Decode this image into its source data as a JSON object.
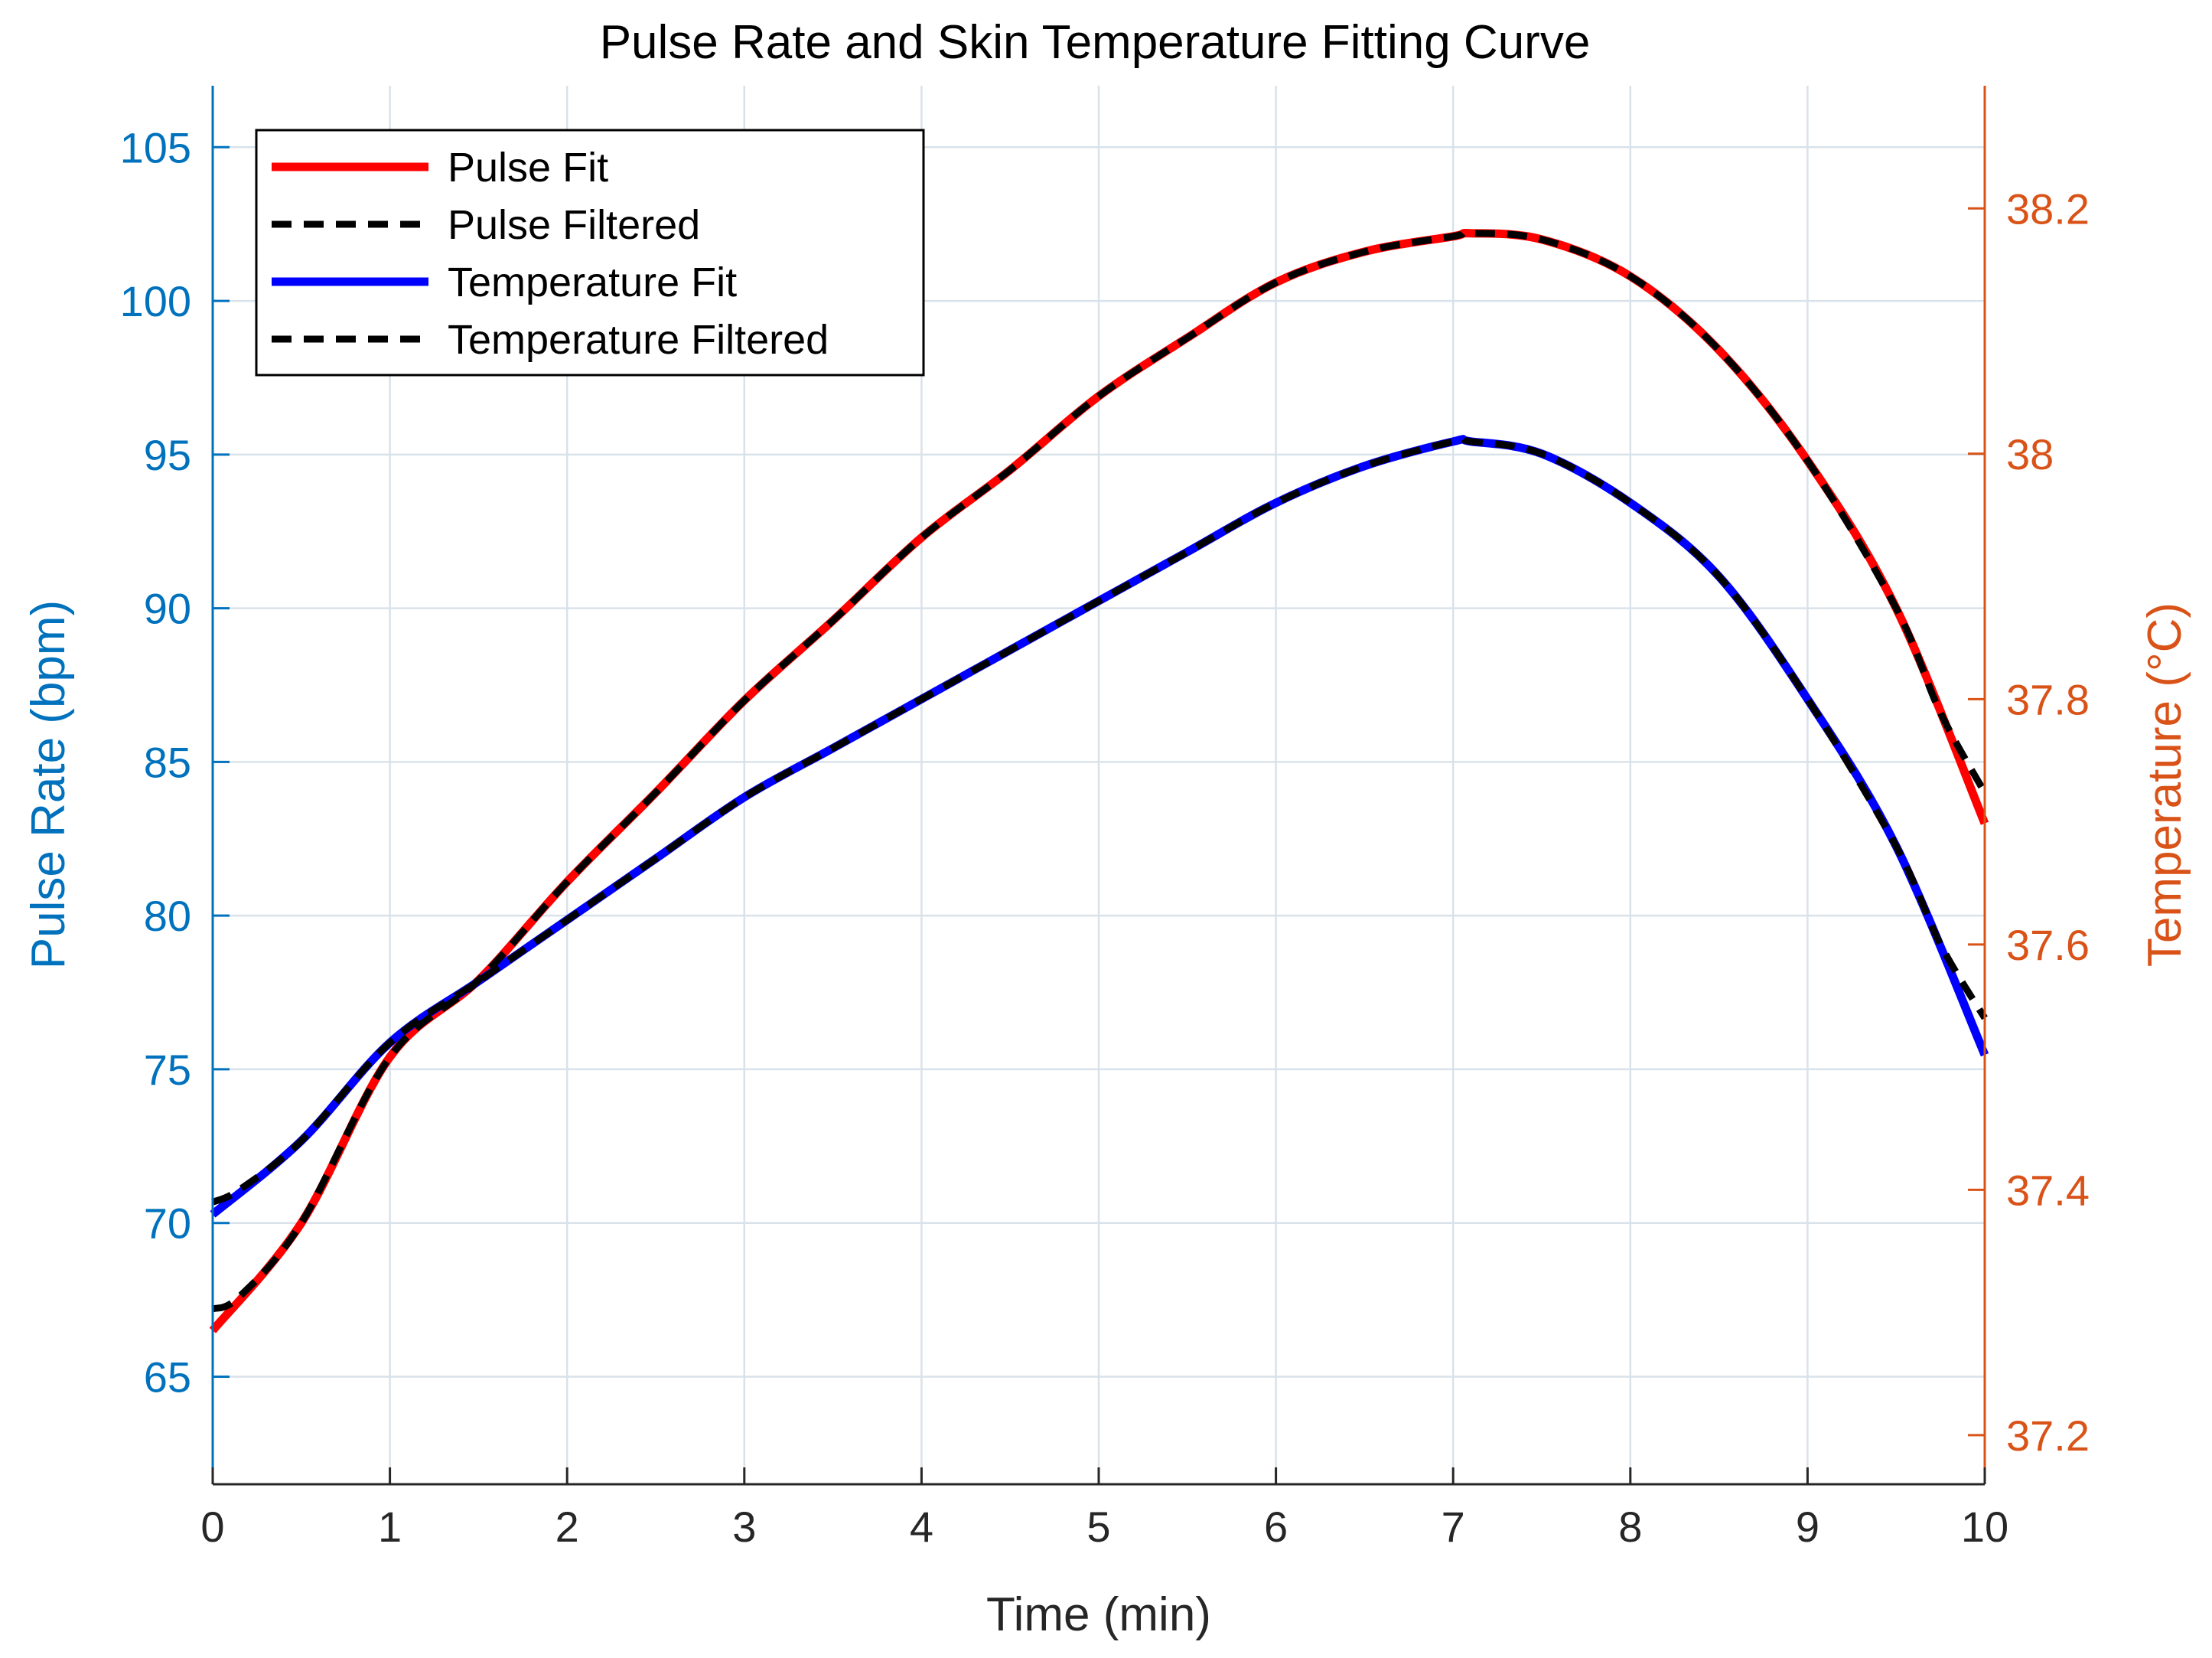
{
  "chart_data": {
    "type": "line",
    "title": "Pulse Rate and Skin Temperature Fitting Curve",
    "xlabel": "Time (min)",
    "ylabel_left": "Pulse Rate (bpm)",
    "ylabel_right": "Temperature (°C)",
    "xlim": [
      0,
      10
    ],
    "ylim_left": [
      61.5,
      107
    ],
    "ylim_right": [
      37.16,
      38.3
    ],
    "x_ticks": [
      "0",
      "1",
      "2",
      "3",
      "4",
      "5",
      "6",
      "7",
      "8",
      "9",
      "10"
    ],
    "y_left_ticks": [
      "65",
      "70",
      "75",
      "80",
      "85",
      "90",
      "95",
      "100",
      "105"
    ],
    "y_right_ticks": [
      "37.2",
      "37.4",
      "37.6",
      "37.8",
      "38",
      "38.2"
    ],
    "grid": true,
    "legend_position": "top-left",
    "colors": {
      "left_axis": "#0072bd",
      "right_axis": "#d95319",
      "pulse_fit": "#ff0000",
      "temperature_fit": "#0000ff",
      "filtered": "#000000"
    },
    "series": [
      {
        "name": "Pulse Fit",
        "axis": "left",
        "style": "solid",
        "color": "#ff0000",
        "x": [
          0,
          0.5,
          1,
          1.5,
          2,
          2.5,
          3,
          3.5,
          4,
          4.5,
          5,
          5.5,
          6,
          6.5,
          7,
          7.1,
          7.5,
          8,
          8.5,
          9,
          9.5,
          10
        ],
        "values": [
          66.5,
          70.0,
          75.4,
          77.9,
          81.1,
          84.0,
          87.0,
          89.6,
          92.3,
          94.5,
          96.9,
          98.8,
          100.6,
          101.6,
          102.1,
          102.2,
          102.0,
          100.8,
          98.4,
          94.8,
          90.0,
          83.0
        ]
      },
      {
        "name": "Pulse Filtered",
        "axis": "left",
        "style": "dashed",
        "color": "#000000",
        "x": [
          0,
          0.15,
          0.5,
          1,
          1.5,
          2,
          2.5,
          3,
          3.5,
          4,
          4.5,
          5,
          5.5,
          6,
          6.5,
          7,
          7.1,
          7.5,
          8,
          8.5,
          9,
          9.5,
          9.75,
          10
        ],
        "values": [
          67.2,
          67.6,
          70.0,
          75.4,
          77.9,
          81.1,
          84.0,
          87.0,
          89.6,
          92.3,
          94.5,
          96.9,
          98.8,
          100.6,
          101.6,
          102.1,
          102.2,
          102.0,
          100.8,
          98.4,
          94.8,
          90.0,
          86.6,
          84.0
        ]
      },
      {
        "name": "Temperature Fit",
        "axis": "right",
        "style": "solid",
        "color": "#0000ff",
        "x": [
          0,
          0.5,
          1,
          1.5,
          2,
          2.5,
          3,
          3.5,
          4,
          4.5,
          5,
          5.5,
          6,
          6.5,
          7,
          7.1,
          7.5,
          8,
          8.5,
          9,
          9.5,
          10
        ],
        "values": [
          37.38,
          37.44,
          37.52,
          37.57,
          37.62,
          37.67,
          37.72,
          37.76,
          37.8,
          37.84,
          37.88,
          37.92,
          37.96,
          37.99,
          38.01,
          38.01,
          38.0,
          37.96,
          37.9,
          37.8,
          37.68,
          37.51
        ]
      },
      {
        "name": "Temperature Filtered",
        "axis": "right",
        "style": "dashed",
        "color": "#000000",
        "x": [
          0,
          0.15,
          0.5,
          1,
          1.5,
          2,
          2.5,
          3,
          3.5,
          4,
          4.5,
          5,
          5.5,
          6,
          6.5,
          7,
          7.1,
          7.5,
          8,
          8.5,
          9,
          9.5,
          9.75,
          10
        ],
        "values": [
          37.39,
          37.4,
          37.44,
          37.52,
          37.57,
          37.62,
          37.67,
          37.72,
          37.76,
          37.8,
          37.84,
          37.88,
          37.92,
          37.96,
          37.99,
          38.01,
          38.01,
          38.0,
          37.96,
          37.9,
          37.8,
          37.68,
          37.6,
          37.54
        ]
      }
    ]
  }
}
